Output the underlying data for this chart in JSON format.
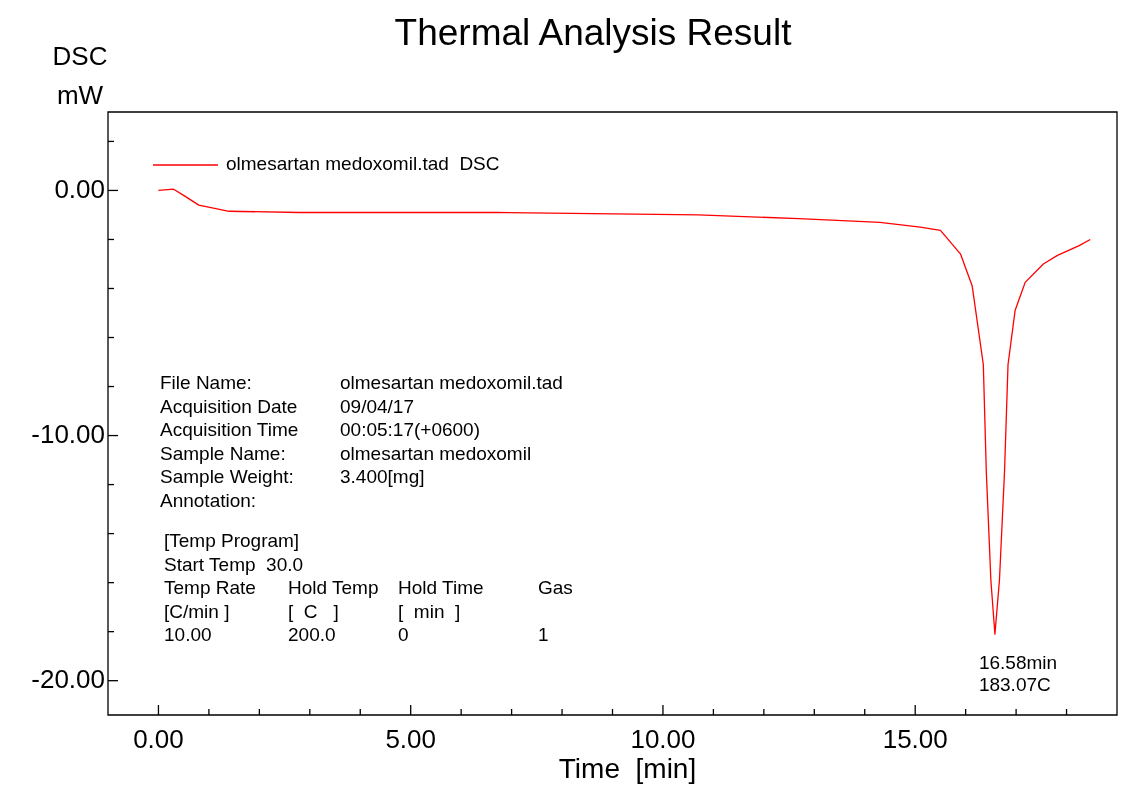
{
  "chart_data": {
    "type": "line",
    "title": "Thermal Analysis Result",
    "xlabel": "Time  [min]",
    "ylabel": "DSC\nmW",
    "xlim": [
      -1,
      19
    ],
    "ylim": [
      -21.4,
      3.2
    ],
    "xticks": [
      {
        "value": 0,
        "label": "0.00"
      },
      {
        "value": 1,
        "label": null
      },
      {
        "value": 2,
        "label": null
      },
      {
        "value": 3,
        "label": null
      },
      {
        "value": 4,
        "label": null
      },
      {
        "value": 5,
        "label": "5.00"
      },
      {
        "value": 6,
        "label": null
      },
      {
        "value": 7,
        "label": null
      },
      {
        "value": 8,
        "label": null
      },
      {
        "value": 9,
        "label": null
      },
      {
        "value": 10,
        "label": "10.00"
      },
      {
        "value": 11,
        "label": null
      },
      {
        "value": 12,
        "label": null
      },
      {
        "value": 13,
        "label": null
      },
      {
        "value": 14,
        "label": null
      },
      {
        "value": 15,
        "label": "15.00"
      },
      {
        "value": 16,
        "label": null
      },
      {
        "value": 17,
        "label": null
      },
      {
        "value": 18,
        "label": null
      }
    ],
    "yticks": [
      {
        "value": 2,
        "label": null
      },
      {
        "value": 0,
        "label": "0.00"
      },
      {
        "value": -2,
        "label": null
      },
      {
        "value": -4,
        "label": null
      },
      {
        "value": -6,
        "label": null
      },
      {
        "value": -8,
        "label": null
      },
      {
        "value": -10,
        "label": "-10.00"
      },
      {
        "value": -12,
        "label": null
      },
      {
        "value": -14,
        "label": null
      },
      {
        "value": -16,
        "label": null
      },
      {
        "value": -18,
        "label": null
      },
      {
        "value": -20,
        "label": "-20.00"
      }
    ],
    "grid": false,
    "legend": "top left",
    "marker": "none",
    "line_style": "solid",
    "series": [
      {
        "name": "olmesartan medoxomil.tad  DSC",
        "color": "#ff0000",
        "x": [
          0,
          0.3,
          0.5,
          0.8,
          1.4,
          2.8,
          6.7,
          10.7,
          12.7,
          14.3,
          15.1,
          15.5,
          15.9,
          16.13,
          16.35,
          16.41,
          16.5,
          16.58,
          16.67,
          16.77,
          16.84,
          16.98,
          17.18,
          17.54,
          17.82,
          18.25,
          18.47
        ],
        "values": [
          0,
          0.05,
          -0.2,
          -0.6,
          -0.85,
          -0.9,
          -0.9,
          -1.0,
          -1.15,
          -1.3,
          -1.5,
          -1.63,
          -2.6,
          -3.9,
          -7.1,
          -11.5,
          -15.9,
          -18.1,
          -15.9,
          -11.5,
          -7.1,
          -4.9,
          -3.75,
          -3.0,
          -2.65,
          -2.25,
          -2.0
        ]
      }
    ],
    "annotations": [
      {
        "text": "16.58min",
        "x": 16.58,
        "y": -18.1
      },
      {
        "text": "183.07C",
        "x": 16.58,
        "y": -18.1
      },
      "File Name:\tolmesartan medoxomil.tad",
      "Acquisition Date\t09/04/17",
      "Acquisition Time\t00:05:17(+0600)",
      "Sample Name:\tolmesartan medoxomil",
      "Sample Weight:\t3.400[mg]",
      "Annotation:",
      "[Temp Program]",
      "Start Temp  30.0",
      "Temp Rate\tHold Temp\tHold Time\tGas",
      "[C/min ]\t[  C   ]\t[  min  ]",
      "10.00\t200.0\t0\t1"
    ]
  }
}
